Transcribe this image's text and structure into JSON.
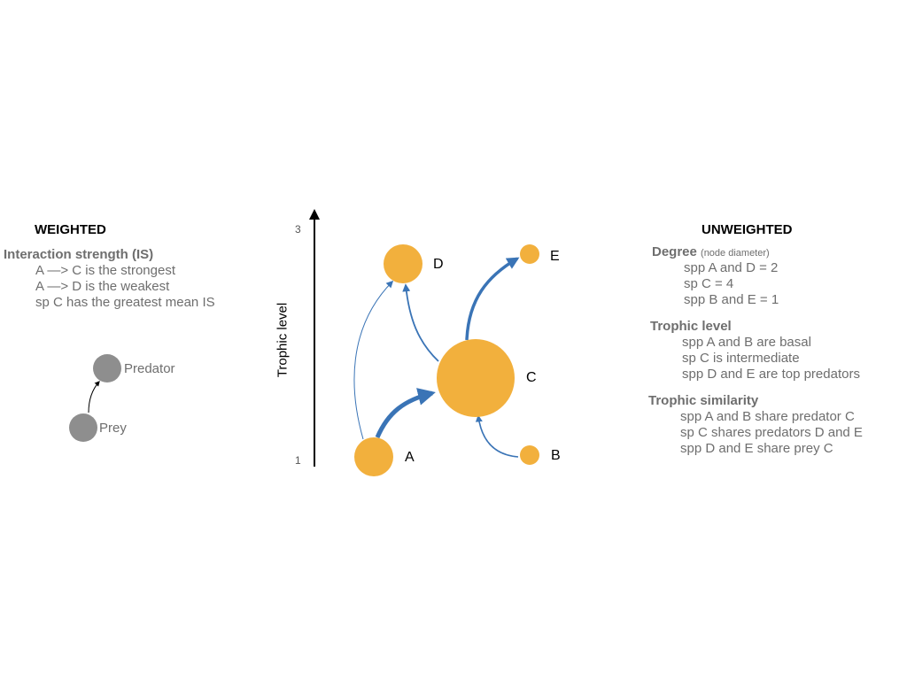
{
  "weighted": {
    "title": "WEIGHTED",
    "is_heading": "Interaction strength (IS)",
    "lines": [
      "A —> C is the strongest",
      "A —> D is the weakest",
      "sp C has the greatest mean IS"
    ],
    "legend": {
      "predator": "Predator",
      "prey": "Prey"
    }
  },
  "axis": {
    "label": "Trophic level",
    "tick_top": "3",
    "tick_bottom": "1"
  },
  "nodes": {
    "A": {
      "label": "A"
    },
    "B": {
      "label": "B"
    },
    "C": {
      "label": "C"
    },
    "D": {
      "label": "D"
    },
    "E": {
      "label": "E"
    }
  },
  "unweighted": {
    "title": "UNWEIGHTED",
    "degree": {
      "heading": "Degree",
      "note": "(node diameter)",
      "lines": [
        "spp A and D = 2",
        "sp C = 4",
        "spp B and E = 1"
      ]
    },
    "trophic_level": {
      "heading": "Trophic level",
      "lines": [
        "spp A and B are basal",
        "sp C is intermediate",
        "spp D and E are top predators"
      ]
    },
    "trophic_similarity": {
      "heading": "Trophic similarity",
      "lines": [
        "spp A and B share predator C",
        "sp C shares predators D and E",
        "spp D and E share prey C"
      ]
    }
  },
  "colors": {
    "node": "#F2B03D",
    "arrow": "#3A74B6",
    "legend_node": "#8E8E8E",
    "text_gray": "#6E6E6E"
  }
}
